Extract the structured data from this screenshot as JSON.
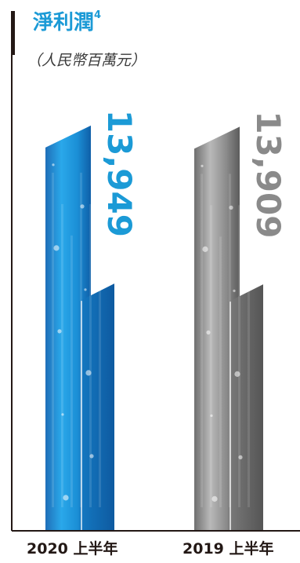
{
  "title": "淨利潤",
  "title_footnote": "4",
  "subtitle": "（人民幣百萬元）",
  "colors": {
    "accent": "#1b9ad6",
    "current_bar": "#1e8fd8",
    "prior_bar": "#9b9b9b",
    "axis": "#231815"
  },
  "chart_data": {
    "type": "bar",
    "title": "淨利潤",
    "ylabel": "（人民幣百萬元）",
    "categories": [
      "2020 上半年",
      "2019 上半年"
    ],
    "values": [
      13949,
      13909
    ],
    "value_labels": [
      "13,949",
      "13,909"
    ],
    "category_parts": [
      {
        "year": "2020",
        "period": "上半年"
      },
      {
        "year": "2019",
        "period": "上半年"
      }
    ]
  }
}
